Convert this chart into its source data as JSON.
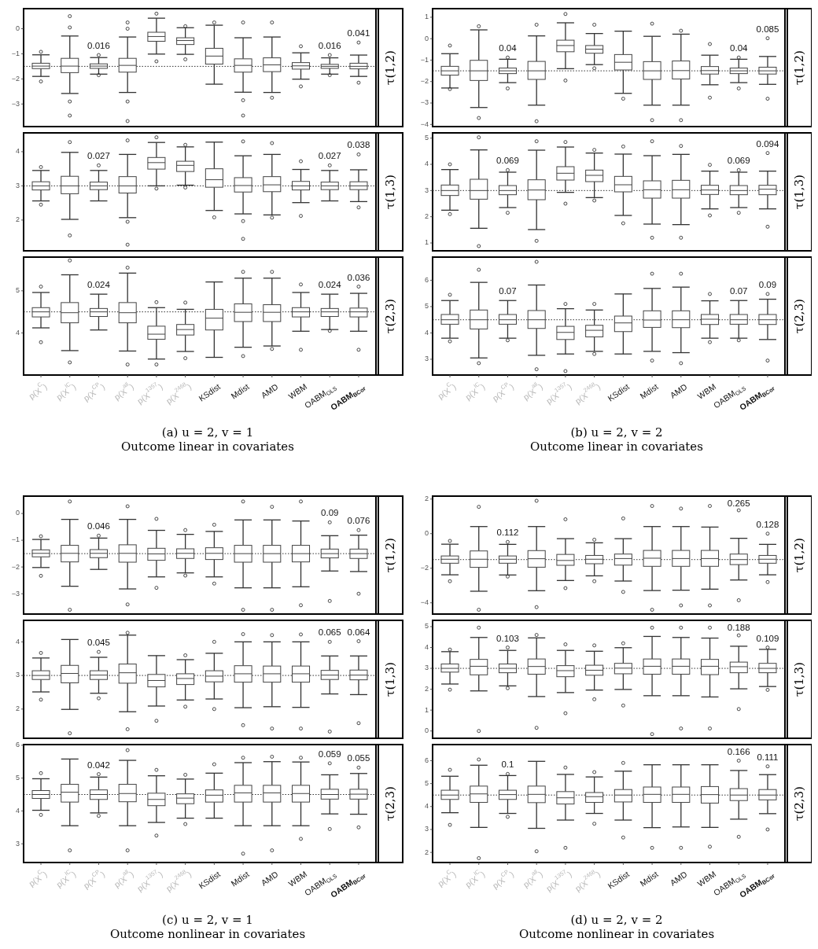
{
  "chart_data": [
    {
      "type": "box",
      "y2label": "τ(1,2)",
      "tick_labels": "y",
      "ylim": [
        -3.9,
        0.8
      ],
      "yticks": [
        -3,
        -2,
        -1,
        0
      ],
      "ref_lines": [
        {
          "axis": "y",
          "value": -1.5,
          "line_style": "dotted"
        }
      ],
      "categories": [
        null,
        null,
        null,
        null,
        null,
        null,
        null,
        null,
        null,
        null,
        null,
        null
      ],
      "boxes": [
        {
          "low": -1.9,
          "q1": -1.59,
          "median": -1.49,
          "q3": -1.375,
          "high": -1.04,
          "outliers": [
            -0.92,
            -2.1
          ]
        },
        {
          "low": -2.58,
          "q1": -1.75,
          "median": -1.49,
          "q3": -1.18,
          "high": -0.29,
          "outliers": [
            0.5,
            0.05,
            -2.9,
            -3.46
          ]
        },
        {
          "low": -1.81,
          "q1": -1.58,
          "median": -1.49,
          "q3": -1.4,
          "high": -1.15,
          "outliers": [
            -1.05,
            -1.85
          ]
        },
        {
          "low": -2.54,
          "q1": -1.73,
          "median": -1.46,
          "q3": -1.18,
          "high": -0.33,
          "outliers": [
            0.25,
            0.0,
            -2.9,
            -3.68
          ]
        },
        {
          "low": -1.01,
          "q1": -0.5,
          "median": -0.31,
          "q3": -0.14,
          "high": 0.42,
          "outliers": [
            0.6,
            -1.3
          ]
        },
        {
          "low": -1.02,
          "q1": -0.63,
          "median": -0.47,
          "q3": -0.36,
          "high": 0.04,
          "outliers": [
            0.1,
            -1.22
          ]
        },
        {
          "low": -2.21,
          "q1": -1.41,
          "median": -1.09,
          "q3": -0.78,
          "high": 0.14,
          "outliers": [
            0.25
          ]
        },
        {
          "low": -2.53,
          "q1": -1.73,
          "median": -1.46,
          "q3": -1.2,
          "high": -0.36,
          "outliers": [
            0.25,
            -2.85,
            -3.46
          ]
        },
        {
          "low": -2.54,
          "q1": -1.71,
          "median": -1.44,
          "q3": -1.16,
          "high": -0.33,
          "outliers": [
            0.25,
            -2.75
          ]
        },
        {
          "low": -2.01,
          "q1": -1.61,
          "median": -1.48,
          "q3": -1.35,
          "high": -0.96,
          "outliers": [
            -0.7,
            -2.3
          ]
        },
        {
          "low": -1.81,
          "q1": -1.58,
          "median": -1.5,
          "q3": -1.42,
          "high": -1.16,
          "outliers": [
            -1.05,
            -1.85
          ]
        },
        {
          "low": -1.9,
          "q1": -1.6,
          "median": -1.5,
          "q3": -1.375,
          "high": -1.05,
          "outliers": [
            -0.55,
            -2.15
          ]
        }
      ],
      "annotations": [
        "0.016",
        "0.016",
        "0.041"
      ]
    },
    {
      "type": "box",
      "y2label": "τ(1,3)",
      "tick_labels": "y",
      "ylim": [
        1.1,
        4.55
      ],
      "yticks": [
        2,
        3,
        4
      ],
      "ref_lines": [
        {
          "axis": "y",
          "value": 3,
          "line_style": "dotted"
        }
      ],
      "categories": [
        null,
        null,
        null,
        null,
        null,
        null,
        null,
        null,
        null,
        null,
        null,
        null
      ],
      "boxes": [
        {
          "low": 2.56,
          "q1": 2.88,
          "median": 3.0,
          "q3": 3.12,
          "high": 3.45,
          "outliers": [
            3.55,
            2.45
          ]
        },
        {
          "low": 2.02,
          "q1": 2.77,
          "median": 3.0,
          "q3": 3.28,
          "high": 3.98,
          "outliers": [
            4.28,
            1.55
          ]
        },
        {
          "low": 2.56,
          "q1": 2.89,
          "median": 3.0,
          "q3": 3.11,
          "high": 3.45,
          "outliers": [
            3.6
          ]
        },
        {
          "low": 2.07,
          "q1": 2.79,
          "median": 3.0,
          "q3": 3.27,
          "high": 3.92,
          "outliers": [
            4.33,
            1.95,
            1.28
          ]
        },
        {
          "low": 3.0,
          "q1": 3.49,
          "median": 3.68,
          "q3": 3.83,
          "high": 4.27,
          "outliers": [
            4.42,
            2.92
          ]
        },
        {
          "low": 3.02,
          "q1": 3.42,
          "median": 3.6,
          "q3": 3.72,
          "high": 4.14,
          "outliers": [
            4.2,
            2.95
          ]
        },
        {
          "low": 2.28,
          "q1": 2.96,
          "median": 3.18,
          "q3": 3.5,
          "high": 4.28,
          "outliers": [
            2.08
          ]
        },
        {
          "low": 2.18,
          "q1": 2.82,
          "median": 3.01,
          "q3": 3.24,
          "high": 3.88,
          "outliers": [
            4.3,
            1.97,
            1.45
          ]
        },
        {
          "low": 2.15,
          "q1": 2.83,
          "median": 3.03,
          "q3": 3.27,
          "high": 3.92,
          "outliers": [
            4.25,
            2.07
          ]
        },
        {
          "low": 2.51,
          "q1": 2.88,
          "median": 3.0,
          "q3": 3.13,
          "high": 3.48,
          "outliers": [
            3.72,
            2.12
          ]
        },
        {
          "low": 2.56,
          "q1": 2.89,
          "median": 3.0,
          "q3": 3.11,
          "high": 3.45,
          "outliers": [
            3.6
          ]
        },
        {
          "low": 2.54,
          "q1": 2.89,
          "median": 3.0,
          "q3": 3.12,
          "high": 3.47,
          "outliers": [
            3.92,
            2.37
          ]
        }
      ],
      "annotations": [
        "0.027",
        "0.027",
        "0.038"
      ]
    },
    {
      "type": "box",
      "y2label": "τ(2,3)",
      "ylim": [
        3.0,
        5.8
      ],
      "yticks": [
        4,
        5
      ],
      "ref_lines": [
        {
          "axis": "y",
          "value": 4.5,
          "line_style": "dotted"
        }
      ],
      "categories": [
        "p(X$^{C}$)",
        "p(X$^{IC}$)",
        "p(X$^{CP}$)",
        "p(X$^{all}$)",
        "p(X$^{1357}$)",
        "p(X$^{2468}$)",
        "KSdist",
        "Mdist",
        "AMD",
        "WBM",
        "OABM$_{OLS}$",
        "OABM$_{BCor}$"
      ],
      "boxes": [
        {
          "low": 4.12,
          "q1": 4.38,
          "median": 4.5,
          "q3": 4.6,
          "high": 4.96,
          "outliers": [
            5.1,
            3.78
          ]
        },
        {
          "low": 3.58,
          "q1": 4.24,
          "median": 4.48,
          "q3": 4.72,
          "high": 5.38,
          "outliers": [
            5.72,
            3.3
          ]
        },
        {
          "low": 4.07,
          "q1": 4.39,
          "median": 4.5,
          "q3": 4.58,
          "high": 4.92
        },
        {
          "low": 3.57,
          "q1": 4.24,
          "median": 4.48,
          "q3": 4.72,
          "high": 5.42,
          "outliers": [
            5.55,
            3.25
          ]
        },
        {
          "low": 3.38,
          "q1": 3.85,
          "median": 3.97,
          "q3": 4.16,
          "high": 4.6,
          "outliers": [
            4.73,
            3.25
          ]
        },
        {
          "low": 3.56,
          "q1": 3.95,
          "median": 4.08,
          "q3": 4.2,
          "high": 4.56,
          "outliers": [
            4.72,
            3.4
          ]
        },
        {
          "low": 3.42,
          "q1": 4.07,
          "median": 4.35,
          "q3": 4.56,
          "high": 5.21
        },
        {
          "low": 3.66,
          "q1": 4.27,
          "median": 4.49,
          "q3": 4.69,
          "high": 5.3,
          "outliers": [
            5.45,
            3.45
          ]
        },
        {
          "low": 3.69,
          "q1": 4.27,
          "median": 4.49,
          "q3": 4.67,
          "high": 5.3,
          "outliers": [
            5.45,
            3.62
          ]
        },
        {
          "low": 4.04,
          "q1": 4.38,
          "median": 4.5,
          "q3": 4.6,
          "high": 4.96,
          "outliers": [
            5.15,
            3.6
          ]
        },
        {
          "low": 4.08,
          "q1": 4.39,
          "median": 4.5,
          "q3": 4.58,
          "high": 4.92,
          "outliers": [
            4.05
          ]
        },
        {
          "low": 4.04,
          "q1": 4.38,
          "median": 4.5,
          "q3": 4.59,
          "high": 4.94,
          "outliers": [
            5.1,
            3.6
          ]
        }
      ],
      "annotations": [
        "0.024",
        "0.024",
        "0.036",
        "(a) u = 2, v = 1",
        "Outcome linear in covariates"
      ]
    },
    {
      "type": "box",
      "y2label": "τ(1,2)",
      "tick_labels": "y",
      "ylim": [
        -4.1,
        1.4
      ],
      "yticks": [
        -4,
        -3,
        -2,
        -1,
        0,
        1
      ],
      "ref_lines": [
        {
          "axis": "y",
          "value": -1.5,
          "line_style": "dotted"
        }
      ],
      "categories": [
        null,
        null,
        null,
        null,
        null,
        null,
        null,
        null,
        null,
        null,
        null,
        null
      ],
      "boxes": [
        {
          "low": -2.3,
          "q1": -1.7,
          "median": -1.5,
          "q3": -1.29,
          "high": -0.7,
          "outliers": [
            -0.32,
            -2.35
          ]
        },
        {
          "low": -3.21,
          "q1": -1.95,
          "median": -1.5,
          "q3": -1.01,
          "high": 0.41,
          "outliers": [
            0.58,
            -3.7
          ]
        },
        {
          "low": -2.05,
          "q1": -1.63,
          "median": -1.5,
          "q3": -1.37,
          "high": -0.96,
          "outliers": [
            -0.88,
            -2.32
          ]
        },
        {
          "low": -3.1,
          "q1": -1.9,
          "median": -1.5,
          "q3": -1.06,
          "high": 0.13,
          "outliers": [
            0.65,
            -3.85
          ]
        },
        {
          "low": -1.4,
          "q1": -0.61,
          "median": -0.32,
          "q3": -0.07,
          "high": 0.74,
          "outliers": [
            1.15,
            -1.95
          ]
        },
        {
          "low": -1.21,
          "q1": -0.68,
          "median": -0.49,
          "q3": -0.32,
          "high": 0.24,
          "outliers": [
            0.65,
            -1.38
          ]
        },
        {
          "low": -2.55,
          "q1": -1.46,
          "median": -1.1,
          "q3": -0.74,
          "high": 0.35,
          "outliers": [
            -2.8
          ]
        },
        {
          "low": -3.1,
          "q1": -1.9,
          "median": -1.5,
          "q3": -1.07,
          "high": 0.11,
          "outliers": [
            0.7,
            -3.8
          ]
        },
        {
          "low": -3.1,
          "q1": -1.88,
          "median": -1.49,
          "q3": -1.04,
          "high": 0.21,
          "outliers": [
            0.37,
            -3.8
          ]
        },
        {
          "low": -2.15,
          "q1": -1.65,
          "median": -1.49,
          "q3": -1.3,
          "high": -0.77,
          "outliers": [
            -0.25,
            -2.75
          ]
        },
        {
          "low": -2.05,
          "q1": -1.63,
          "median": -1.5,
          "q3": -1.37,
          "high": -0.96,
          "outliers": [
            -0.88,
            -2.32
          ]
        },
        {
          "low": -2.13,
          "q1": -1.65,
          "median": -1.5,
          "q3": -1.33,
          "high": -0.83,
          "outliers": [
            0.02,
            -2.8
          ]
        }
      ],
      "annotations": [
        "0.04",
        "0.04",
        "0.085"
      ]
    },
    {
      "type": "box",
      "y2label": "τ(1,3)",
      "tick_labels": "y",
      "ylim": [
        0.7,
        5.2
      ],
      "yticks": [
        1,
        2,
        3,
        4,
        5
      ],
      "ref_lines": [
        {
          "axis": "y",
          "value": 3,
          "line_style": "dotted"
        }
      ],
      "categories": [
        null,
        null,
        null,
        null,
        null,
        null,
        null,
        null,
        null,
        null,
        null,
        null
      ],
      "boxes": [
        {
          "low": 2.25,
          "q1": 2.81,
          "median": 3.0,
          "q3": 3.21,
          "high": 3.8,
          "outliers": [
            4.0,
            2.1
          ]
        },
        {
          "low": 1.56,
          "q1": 2.67,
          "median": 3.0,
          "q3": 3.43,
          "high": 4.55,
          "outliers": [
            5.03,
            0.88
          ]
        },
        {
          "low": 2.35,
          "q1": 2.84,
          "median": 3.0,
          "q3": 3.19,
          "high": 3.7,
          "outliers": [
            3.78,
            2.15
          ]
        },
        {
          "low": 1.51,
          "q1": 2.65,
          "median": 3.02,
          "q3": 3.41,
          "high": 4.54,
          "outliers": [
            4.88,
            1.08
          ]
        },
        {
          "low": 2.93,
          "q1": 3.4,
          "median": 3.66,
          "q3": 3.91,
          "high": 4.66,
          "outliers": [
            4.85,
            2.5
          ]
        },
        {
          "low": 2.73,
          "q1": 3.34,
          "median": 3.58,
          "q3": 3.78,
          "high": 4.43,
          "outliers": [
            4.55,
            2.62
          ]
        },
        {
          "low": 2.05,
          "q1": 2.95,
          "median": 3.22,
          "q3": 3.54,
          "high": 4.39,
          "outliers": [
            4.68,
            1.75
          ]
        },
        {
          "low": 1.72,
          "q1": 2.71,
          "median": 3.03,
          "q3": 3.37,
          "high": 4.33,
          "outliers": [
            4.88,
            1.2
          ]
        },
        {
          "low": 1.7,
          "q1": 2.71,
          "median": 3.03,
          "q3": 3.39,
          "high": 4.38,
          "outliers": [
            4.7,
            1.2
          ]
        },
        {
          "low": 2.3,
          "q1": 2.85,
          "median": 3.02,
          "q3": 3.2,
          "high": 3.74,
          "outliers": [
            3.98,
            2.05
          ]
        },
        {
          "low": 2.35,
          "q1": 2.84,
          "median": 3.0,
          "q3": 3.19,
          "high": 3.7,
          "outliers": [
            3.78,
            2.15
          ]
        },
        {
          "low": 2.3,
          "q1": 2.84,
          "median": 3.05,
          "q3": 3.2,
          "high": 3.74,
          "outliers": [
            4.43,
            1.62
          ]
        }
      ],
      "annotations": [
        "0.069",
        "0.069",
        "0.094"
      ]
    },
    {
      "type": "box",
      "y2label": "τ(2,3)",
      "ylim": [
        2.4,
        6.88
      ],
      "yticks": [
        3,
        4,
        5,
        6
      ],
      "ref_lines": [
        {
          "axis": "y",
          "value": 4.5,
          "line_style": "dotted"
        }
      ],
      "categories": [
        "p(X$^{C}$)",
        "p(X$^{IC}$)",
        "p(X$^{CP}$)",
        "p(X$^{all}$)",
        "p(X$^{1357}$)",
        "p(X$^{2468}$)",
        "KSdist",
        "Mdist",
        "AMD",
        "WBM",
        "OABM$_{OLS}$",
        "OABM$_{BCor}$"
      ],
      "boxes": [
        {
          "low": 3.8,
          "q1": 4.33,
          "median": 4.5,
          "q3": 4.7,
          "high": 5.23,
          "outliers": [
            5.45,
            3.68
          ]
        },
        {
          "low": 3.05,
          "q1": 4.15,
          "median": 4.5,
          "q3": 4.87,
          "high": 5.92,
          "outliers": [
            6.4,
            2.85
          ]
        },
        {
          "low": 3.8,
          "q1": 4.33,
          "median": 4.5,
          "q3": 4.7,
          "high": 5.23,
          "outliers": [
            3.72
          ]
        },
        {
          "low": 3.15,
          "q1": 4.17,
          "median": 4.5,
          "q3": 4.85,
          "high": 5.82,
          "outliers": [
            6.7,
            2.62
          ]
        },
        {
          "low": 3.2,
          "q1": 3.75,
          "median": 4.02,
          "q3": 4.25,
          "high": 4.92,
          "outliers": [
            5.1,
            2.55
          ]
        },
        {
          "low": 3.3,
          "q1": 3.85,
          "median": 4.1,
          "q3": 4.29,
          "high": 4.87,
          "outliers": [
            5.1,
            3.2
          ]
        },
        {
          "low": 3.2,
          "q1": 4.05,
          "median": 4.38,
          "q3": 4.64,
          "high": 5.48
        },
        {
          "low": 3.3,
          "q1": 4.21,
          "median": 4.49,
          "q3": 4.84,
          "high": 5.69,
          "outliers": [
            6.25,
            2.95
          ]
        },
        {
          "low": 3.25,
          "q1": 4.2,
          "median": 4.5,
          "q3": 4.84,
          "high": 5.74,
          "outliers": [
            6.25,
            2.85
          ]
        },
        {
          "low": 3.8,
          "q1": 4.32,
          "median": 4.52,
          "q3": 4.7,
          "high": 5.22,
          "outliers": [
            5.48,
            3.65
          ]
        },
        {
          "low": 3.8,
          "q1": 4.33,
          "median": 4.5,
          "q3": 4.7,
          "high": 5.23,
          "outliers": [
            3.72
          ]
        },
        {
          "low": 3.75,
          "q1": 4.32,
          "median": 4.5,
          "q3": 4.7,
          "high": 5.28,
          "outliers": [
            5.48,
            2.95
          ]
        }
      ],
      "annotations": [
        "0.07",
        "0.07",
        "0.09",
        "(b) u = 2, v = 2",
        "Outcome linear in covariates"
      ]
    },
    {
      "type": "box",
      "y2label": "τ(1,2)",
      "tick_labels": "y",
      "ylim": [
        -3.76,
        0.65
      ],
      "yticks": [
        -3,
        -2,
        -1,
        0
      ],
      "ref_lines": [
        {
          "axis": "y",
          "value": -1.5,
          "line_style": "dotted"
        }
      ],
      "categories": [
        null,
        null,
        null,
        null,
        null,
        null,
        null,
        null,
        null,
        null,
        null,
        null
      ],
      "boxes": [
        {
          "low": -2.02,
          "q1": -1.62,
          "median": -1.49,
          "q3": -1.36,
          "high": -0.97,
          "outliers": [
            -0.85,
            -2.33
          ]
        },
        {
          "low": -2.72,
          "q1": -1.81,
          "median": -1.49,
          "q3": -1.19,
          "high": -0.22,
          "outliers": [
            0.45,
            -3.6
          ]
        },
        {
          "low": -2.09,
          "q1": -1.65,
          "median": -1.49,
          "q3": -1.35,
          "high": -0.92,
          "outliers": [
            -0.83
          ]
        },
        {
          "low": -2.82,
          "q1": -1.82,
          "median": -1.49,
          "q3": -1.17,
          "high": -0.22,
          "outliers": [
            0.27,
            -3.4
          ]
        },
        {
          "low": -2.37,
          "q1": -1.75,
          "median": -1.51,
          "q3": -1.3,
          "high": -0.63,
          "outliers": [
            -0.2,
            -2.78
          ]
        },
        {
          "low": -2.22,
          "q1": -1.68,
          "median": -1.49,
          "q3": -1.32,
          "high": -0.78,
          "outliers": [
            -0.62,
            -2.32
          ]
        },
        {
          "low": -2.37,
          "q1": -1.72,
          "median": -1.49,
          "q3": -1.28,
          "high": -0.67,
          "outliers": [
            -0.42,
            -2.62
          ]
        },
        {
          "low": -2.78,
          "q1": -1.82,
          "median": -1.5,
          "q3": -1.19,
          "high": -0.24,
          "outliers": [
            0.45,
            -3.6
          ]
        },
        {
          "low": -2.78,
          "q1": -1.82,
          "median": -1.5,
          "q3": -1.19,
          "high": -0.24,
          "outliers": [
            0.25,
            -3.6
          ]
        },
        {
          "low": -2.74,
          "q1": -1.81,
          "median": -1.5,
          "q3": -1.19,
          "high": -0.28,
          "outliers": [
            0.45,
            -3.43
          ]
        },
        {
          "low": -2.15,
          "q1": -1.66,
          "median": -1.5,
          "q3": -1.33,
          "high": -0.83,
          "outliers": [
            -0.33,
            -3.27
          ]
        },
        {
          "low": -2.17,
          "q1": -1.68,
          "median": -1.5,
          "q3": -1.33,
          "high": -0.81,
          "outliers": [
            -0.62,
            -3.0
          ]
        }
      ],
      "annotations": [
        "0.046",
        "0.09",
        "0.076"
      ]
    },
    {
      "type": "box",
      "y2label": "τ(1,3)",
      "tick_labels": "y",
      "ylim": [
        1.13,
        4.64
      ],
      "yticks": [
        2,
        3,
        4
      ],
      "ref_lines": [
        {
          "axis": "y",
          "value": 3,
          "line_style": "dotted"
        }
      ],
      "categories": [
        null,
        null,
        null,
        null,
        null,
        null,
        null,
        null,
        null,
        null,
        null,
        null
      ],
      "boxes": [
        {
          "low": 2.51,
          "q1": 2.88,
          "median": 3.0,
          "q3": 3.14,
          "high": 3.52,
          "outliers": [
            3.67,
            2.28
          ]
        },
        {
          "low": 1.99,
          "q1": 2.78,
          "median": 3.06,
          "q3": 3.3,
          "high": 4.07,
          "outliers": [
            1.28
          ]
        },
        {
          "low": 2.47,
          "q1": 2.88,
          "median": 3.01,
          "q3": 3.14,
          "high": 3.54,
          "outliers": [
            3.7,
            2.32
          ]
        },
        {
          "low": 1.92,
          "q1": 2.77,
          "median": 3.08,
          "q3": 3.34,
          "high": 4.2,
          "outliers": [
            4.27,
            1.4
          ]
        },
        {
          "low": 2.09,
          "q1": 2.66,
          "median": 2.85,
          "q3": 3.03,
          "high": 3.59,
          "outliers": [
            1.65
          ]
        },
        {
          "low": 2.27,
          "q1": 2.73,
          "median": 2.91,
          "q3": 3.05,
          "high": 3.47,
          "outliers": [
            3.6,
            2.07
          ]
        },
        {
          "low": 2.3,
          "q1": 2.81,
          "median": 2.98,
          "q3": 3.14,
          "high": 3.66,
          "outliers": [
            4.0,
            2.0
          ]
        },
        {
          "low": 2.04,
          "q1": 2.8,
          "median": 3.05,
          "q3": 3.29,
          "high": 4.0,
          "outliers": [
            4.23,
            1.52
          ]
        },
        {
          "low": 2.07,
          "q1": 2.8,
          "median": 3.05,
          "q3": 3.28,
          "high": 4.0,
          "outliers": [
            4.2,
            1.42
          ]
        },
        {
          "low": 2.05,
          "q1": 2.8,
          "median": 3.05,
          "q3": 3.28,
          "high": 4.0,
          "outliers": [
            4.22,
            1.42
          ]
        },
        {
          "low": 2.45,
          "q1": 2.88,
          "median": 3.01,
          "q3": 3.15,
          "high": 3.58,
          "outliers": [
            4.0,
            1.33
          ]
        },
        {
          "low": 2.43,
          "q1": 2.87,
          "median": 3.01,
          "q3": 3.16,
          "high": 3.58,
          "outliers": [
            4.02,
            1.58
          ]
        }
      ],
      "annotations": [
        "0.045",
        "0.065",
        "0.064"
      ]
    },
    {
      "type": "box",
      "y2label": "τ(2,3)",
      "ylim": [
        2.43,
        6.02
      ],
      "yticks": [
        3,
        4,
        5,
        6
      ],
      "ref_lines": [
        {
          "axis": "y",
          "value": 4.5,
          "line_style": "dotted"
        }
      ],
      "categories": [
        "p(X$^{C}$)",
        "p(X$^{IC}$)",
        "p(X$^{CP}$)",
        "p(X$^{all}$)",
        "p(X$^{1357}$)",
        "p(X$^{2468}$)",
        "KSdist",
        "Mdist",
        "AMD",
        "WBM",
        "OABM$_{OLS}$",
        "OABM$_{BCor}$"
      ],
      "boxes": [
        {
          "low": 4.02,
          "q1": 4.38,
          "median": 4.5,
          "q3": 4.62,
          "high": 4.98,
          "outliers": [
            5.15,
            3.88
          ]
        },
        {
          "low": 3.55,
          "q1": 4.27,
          "median": 4.57,
          "q3": 4.81,
          "high": 5.58,
          "outliers": [
            2.8
          ]
        },
        {
          "low": 3.94,
          "q1": 4.35,
          "median": 4.5,
          "q3": 4.64,
          "high": 5.03,
          "outliers": [
            5.12,
            3.85
          ]
        },
        {
          "low": 3.55,
          "q1": 4.28,
          "median": 4.53,
          "q3": 4.81,
          "high": 5.54,
          "outliers": [
            5.85,
            2.8
          ]
        },
        {
          "low": 3.65,
          "q1": 4.16,
          "median": 4.35,
          "q3": 4.54,
          "high": 5.07,
          "outliers": [
            5.25,
            3.25
          ]
        },
        {
          "low": 3.78,
          "q1": 4.22,
          "median": 4.39,
          "q3": 4.52,
          "high": 4.97,
          "outliers": [
            5.1,
            3.6
          ]
        },
        {
          "low": 3.78,
          "q1": 4.27,
          "median": 4.48,
          "q3": 4.64,
          "high": 5.15,
          "outliers": [
            5.42
          ]
        },
        {
          "low": 3.55,
          "q1": 4.27,
          "median": 4.55,
          "q3": 4.78,
          "high": 5.47,
          "outliers": [
            5.62,
            2.7
          ]
        },
        {
          "low": 3.55,
          "q1": 4.27,
          "median": 4.55,
          "q3": 4.78,
          "high": 5.5,
          "outliers": [
            5.65,
            2.8
          ]
        },
        {
          "low": 3.55,
          "q1": 4.27,
          "median": 4.53,
          "q3": 4.78,
          "high": 5.49,
          "outliers": [
            5.62,
            3.15
          ]
        },
        {
          "low": 3.91,
          "q1": 4.36,
          "median": 4.5,
          "q3": 4.66,
          "high": 5.1,
          "outliers": [
            5.45,
            3.45
          ]
        },
        {
          "low": 3.9,
          "q1": 4.36,
          "median": 4.51,
          "q3": 4.66,
          "high": 5.14,
          "outliers": [
            5.32,
            3.5
          ]
        }
      ],
      "annotations": [
        "0.042",
        "0.059",
        "0.055",
        "(c) u = 2, v = 1",
        "Outcome nonlinear in covariates"
      ]
    },
    {
      "type": "box",
      "y2label": "τ(1,2)",
      "tick_labels": "y",
      "ylim": [
        -4.65,
        2.17
      ],
      "yticks": [
        -4,
        -2,
        0,
        2
      ],
      "ref_lines": [
        {
          "axis": "y",
          "value": -1.5,
          "line_style": "dotted"
        }
      ],
      "categories": [
        null,
        null,
        null,
        null,
        null,
        null,
        null,
        null,
        null,
        null,
        null,
        null
      ],
      "boxes": [
        {
          "low": -2.38,
          "q1": -1.71,
          "median": -1.48,
          "q3": -1.29,
          "high": -0.61,
          "outliers": [
            -0.42,
            -2.75
          ]
        },
        {
          "low": -3.33,
          "q1": -1.95,
          "median": -1.48,
          "q3": -1.0,
          "high": 0.41,
          "outliers": [
            1.55,
            -4.4
          ]
        },
        {
          "low": -2.39,
          "q1": -1.71,
          "median": -1.48,
          "q3": -1.29,
          "high": -0.62,
          "outliers": [
            -0.48,
            -2.48
          ]
        },
        {
          "low": -3.3,
          "q1": -1.94,
          "median": -1.45,
          "q3": -0.98,
          "high": 0.41,
          "outliers": [
            1.9,
            -4.25
          ]
        },
        {
          "low": -2.71,
          "q1": -1.83,
          "median": -1.55,
          "q3": -1.2,
          "high": -0.29,
          "outliers": [
            0.83,
            -3.15
          ]
        },
        {
          "low": -2.44,
          "q1": -1.74,
          "median": -1.48,
          "q3": -1.26,
          "high": -0.53,
          "outliers": [
            -0.35,
            -2.75
          ]
        },
        {
          "low": -2.74,
          "q1": -1.82,
          "median": -1.44,
          "q3": -1.18,
          "high": -0.29,
          "outliers": [
            0.88,
            -3.37
          ]
        },
        {
          "low": -3.29,
          "q1": -1.89,
          "median": -1.42,
          "q3": -0.97,
          "high": 0.41,
          "outliers": [
            1.6,
            -4.4
          ]
        },
        {
          "low": -3.27,
          "q1": -1.89,
          "median": -1.44,
          "q3": -0.97,
          "high": 0.41,
          "outliers": [
            1.45,
            -4.15
          ]
        },
        {
          "low": -3.21,
          "q1": -1.89,
          "median": -1.44,
          "q3": -0.97,
          "high": 0.38,
          "outliers": [
            1.6,
            -4.15
          ]
        },
        {
          "low": -2.68,
          "q1": -1.79,
          "median": -1.5,
          "q3": -1.18,
          "high": -0.27,
          "outliers": [
            1.35,
            -3.85
          ]
        },
        {
          "low": -2.38,
          "q1": -1.71,
          "median": -1.48,
          "q3": -1.26,
          "high": -0.62,
          "outliers": [
            0.0,
            -2.8
          ]
        }
      ],
      "annotations": [
        "0.112",
        "0.265",
        "0.128"
      ]
    },
    {
      "type": "box",
      "y2label": "τ(1,3)",
      "tick_labels": "y",
      "ylim": [
        -0.35,
        5.3
      ],
      "yticks": [
        0,
        1,
        2,
        3,
        4,
        5
      ],
      "ref_lines": [
        {
          "axis": "y",
          "value": 3,
          "line_style": "dotted"
        }
      ],
      "categories": [
        null,
        null,
        null,
        null,
        null,
        null,
        null,
        null,
        null,
        null,
        null,
        null
      ],
      "boxes": [
        {
          "low": 2.25,
          "q1": 2.82,
          "median": 3.0,
          "q3": 3.21,
          "high": 3.8,
          "outliers": [
            3.9,
            1.98
          ]
        },
        {
          "low": 1.92,
          "q1": 2.69,
          "median": 3.1,
          "q3": 3.43,
          "high": 4.48,
          "outliers": [
            4.95,
            0.0
          ]
        },
        {
          "low": 2.16,
          "q1": 2.79,
          "median": 3.0,
          "q3": 3.21,
          "high": 3.86,
          "outliers": [
            4.0,
            2.05
          ]
        },
        {
          "low": 1.65,
          "q1": 2.72,
          "median": 3.09,
          "q3": 3.45,
          "high": 4.46,
          "outliers": [
            4.6,
            0.15
          ]
        },
        {
          "low": 1.84,
          "q1": 2.6,
          "median": 2.89,
          "q3": 3.13,
          "high": 3.86,
          "outliers": [
            4.15,
            0.85
          ]
        },
        {
          "low": 1.96,
          "q1": 2.67,
          "median": 2.91,
          "q3": 3.15,
          "high": 3.82,
          "outliers": [
            4.1,
            1.52
          ]
        },
        {
          "low": 1.99,
          "q1": 2.74,
          "median": 3.01,
          "q3": 3.24,
          "high": 3.99,
          "outliers": [
            4.2,
            1.22
          ]
        },
        {
          "low": 1.69,
          "q1": 2.72,
          "median": 3.1,
          "q3": 3.45,
          "high": 4.53,
          "outliers": [
            4.95,
            -0.15
          ]
        },
        {
          "low": 1.69,
          "q1": 2.72,
          "median": 3.1,
          "q3": 3.45,
          "high": 4.48,
          "outliers": [
            4.95,
            0.12
          ]
        },
        {
          "low": 1.63,
          "q1": 2.7,
          "median": 3.1,
          "q3": 3.43,
          "high": 4.45,
          "outliers": [
            4.95,
            0.12
          ]
        },
        {
          "low": 2.02,
          "q1": 2.79,
          "median": 3.08,
          "q3": 3.3,
          "high": 4.06,
          "outliers": [
            4.58,
            1.05
          ]
        },
        {
          "low": 2.13,
          "q1": 2.79,
          "median": 3.0,
          "q3": 3.24,
          "high": 3.91,
          "outliers": [
            4.0,
            1.97
          ]
        }
      ],
      "annotations": [
        "0.103",
        "0.188",
        "0.109"
      ]
    },
    {
      "type": "box",
      "y2label": "τ(2,3)",
      "ylim": [
        1.56,
        6.7
      ],
      "yticks": [
        2,
        3,
        4,
        5,
        6
      ],
      "ref_lines": [
        {
          "axis": "y",
          "value": 4.5,
          "line_style": "dotted"
        }
      ],
      "categories": [
        "p(X$^{C}$)",
        "p(X$^{IC}$)",
        "p(X$^{CP}$)",
        "p(X$^{all}$)",
        "p(X$^{1357}$)",
        "p(X$^{2468}$)",
        "KSdist",
        "Mdist",
        "AMD",
        "WBM",
        "OABM$_{OLS}$",
        "OABM$_{BCor}$"
      ],
      "boxes": [
        {
          "low": 3.73,
          "q1": 4.31,
          "median": 4.5,
          "q3": 4.71,
          "high": 5.32,
          "outliers": [
            5.6,
            3.2
          ]
        },
        {
          "low": 3.09,
          "q1": 4.18,
          "median": 4.55,
          "q3": 4.89,
          "high": 5.8,
          "outliers": [
            6.05,
            1.75
          ]
        },
        {
          "low": 3.7,
          "q1": 4.31,
          "median": 4.52,
          "q3": 4.71,
          "high": 5.35,
          "outliers": [
            5.42,
            3.55
          ]
        },
        {
          "low": 3.05,
          "q1": 4.17,
          "median": 4.53,
          "q3": 4.89,
          "high": 5.97,
          "outliers": [
            2.05
          ]
        },
        {
          "low": 3.41,
          "q1": 4.11,
          "median": 4.38,
          "q3": 4.65,
          "high": 5.4,
          "outliers": [
            5.7,
            2.2
          ]
        },
        {
          "low": 3.7,
          "q1": 4.18,
          "median": 4.43,
          "q3": 4.61,
          "high": 5.29,
          "outliers": [
            5.5,
            3.25
          ]
        },
        {
          "low": 3.41,
          "q1": 4.2,
          "median": 4.5,
          "q3": 4.74,
          "high": 5.54,
          "outliers": [
            5.9,
            2.65
          ]
        },
        {
          "low": 3.08,
          "q1": 4.18,
          "median": 4.53,
          "q3": 4.85,
          "high": 5.82,
          "outliers": [
            2.2
          ]
        },
        {
          "low": 3.11,
          "q1": 4.18,
          "median": 4.53,
          "q3": 4.85,
          "high": 5.82,
          "outliers": [
            2.2
          ]
        },
        {
          "low": 3.09,
          "q1": 4.15,
          "median": 4.52,
          "q3": 4.87,
          "high": 5.82,
          "outliers": [
            2.25
          ]
        },
        {
          "low": 3.45,
          "q1": 4.26,
          "median": 4.5,
          "q3": 4.78,
          "high": 5.57,
          "outliers": [
            6.0,
            2.68
          ]
        },
        {
          "low": 3.69,
          "q1": 4.29,
          "median": 4.5,
          "q3": 4.74,
          "high": 5.39,
          "outliers": [
            5.75,
            3.0
          ]
        }
      ],
      "annotations": [
        "0.1",
        "0.166",
        "0.111",
        "(d) u = 2, v = 2",
        "Outcome nonlinear in covariates"
      ]
    }
  ]
}
